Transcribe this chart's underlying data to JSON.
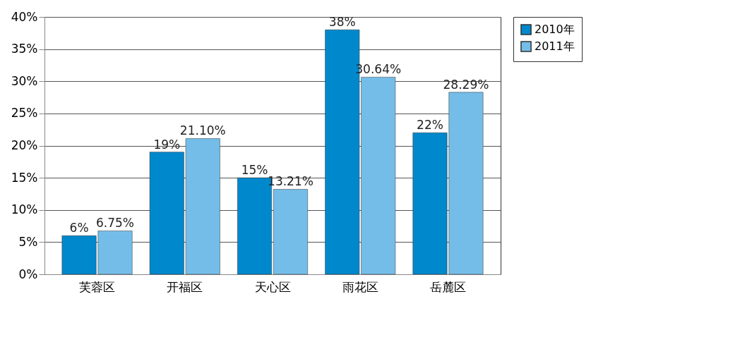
{
  "chart_data": {
    "type": "bar",
    "categories": [
      "芙蓉区",
      "开福区",
      "天心区",
      "雨花区",
      "岳麓区"
    ],
    "series": [
      {
        "name": "2010年",
        "color": "#0088cc",
        "values": [
          6,
          19,
          15,
          38,
          22
        ],
        "value_labels": [
          "6%",
          "19%",
          "15%",
          "38%",
          "22%"
        ]
      },
      {
        "name": "2011年",
        "color": "#74bde8",
        "values": [
          6.75,
          21.1,
          13.21,
          30.64,
          28.29
        ],
        "value_labels": [
          "6.75%",
          "21.10%",
          "13.21%",
          "30.64%",
          "28.29%"
        ]
      }
    ],
    "ylim": [
      0,
      40
    ],
    "yticks": [
      {
        "value": 0,
        "label": "0%"
      },
      {
        "value": 5,
        "label": "5%"
      },
      {
        "value": 10,
        "label": "10%"
      },
      {
        "value": 15,
        "label": "15%"
      },
      {
        "value": 20,
        "label": "20%"
      },
      {
        "value": 25,
        "label": "25%"
      },
      {
        "value": 30,
        "label": "30%"
      },
      {
        "value": 35,
        "label": "35%"
      },
      {
        "value": 40,
        "label": "40%"
      }
    ],
    "grid": "y",
    "legend": "right"
  }
}
